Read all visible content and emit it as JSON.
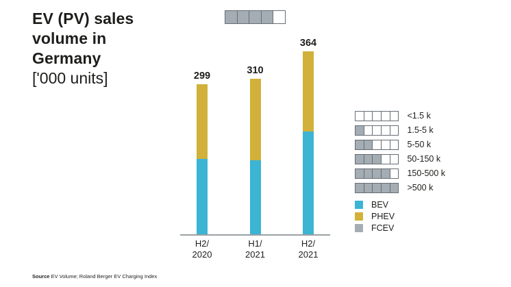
{
  "header": {
    "title": "EV (PV) sales volume in Germany",
    "subtitle": "['000 units]"
  },
  "rating_indicator": {
    "filled": 4,
    "total": 5,
    "meaning": "150-500 k"
  },
  "chart_data": {
    "type": "bar",
    "stacked": true,
    "title": "EV (PV) sales volume in Germany ['000 units]",
    "xlabel": "",
    "ylabel": "'000 units",
    "ylim": [
      0,
      380
    ],
    "grid": false,
    "legend_position": "right",
    "categories": [
      {
        "line1": "H2/",
        "line2": "2020"
      },
      {
        "line1": "H1/",
        "line2": "2021"
      },
      {
        "line1": "H2/",
        "line2": "2021"
      }
    ],
    "totals": [
      299,
      310,
      364
    ],
    "value_labels": [
      "299",
      "310",
      "364"
    ],
    "series": [
      {
        "name": "BEV",
        "color": "#3cb4d3",
        "values": [
          150,
          147,
          205
        ]
      },
      {
        "name": "PHEV",
        "color": "#d1b139",
        "values": [
          149,
          163,
          159
        ]
      },
      {
        "name": "FCEV",
        "color": "#a4adb3",
        "values": [
          0,
          0,
          0
        ]
      }
    ]
  },
  "scale_legend": {
    "squares_per_row": 5,
    "rows": [
      {
        "filled": 0,
        "label": "<1.5 k"
      },
      {
        "filled": 1,
        "label": "1.5-5 k"
      },
      {
        "filled": 2,
        "label": "5-50 k"
      },
      {
        "filled": 3,
        "label": "50-150 k"
      },
      {
        "filled": 4,
        "label": "150-500 k"
      },
      {
        "filled": 5,
        "label": ">500 k"
      }
    ]
  },
  "color_legend": [
    {
      "label": "BEV",
      "color": "#3cb4d3"
    },
    {
      "label": "PHEV",
      "color": "#d1b139"
    },
    {
      "label": "FCEV",
      "color": "#a4adb3"
    }
  ],
  "footer": {
    "source_label": "Source",
    "source_text": "EV Volume; Roland Berger EV Charging Index"
  }
}
